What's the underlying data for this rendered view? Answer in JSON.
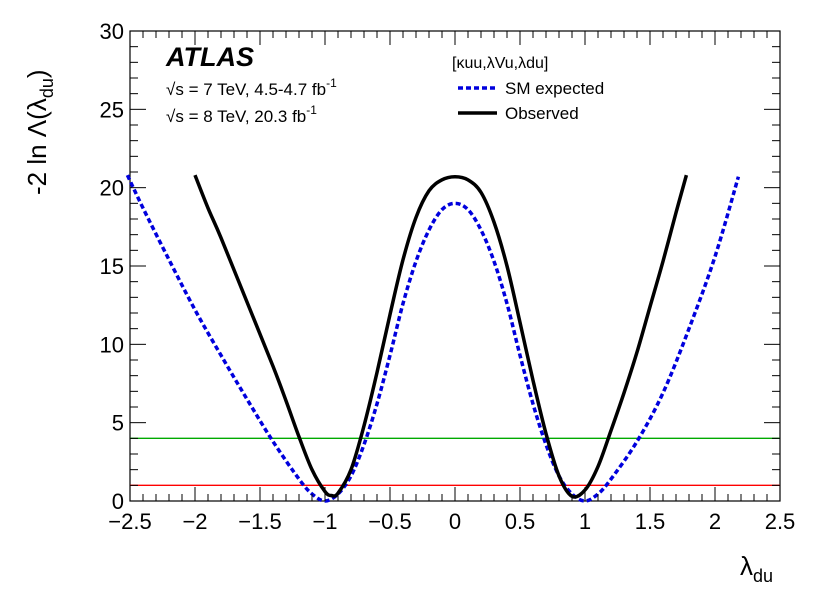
{
  "chart_data": {
    "type": "line",
    "xlabel": "λ",
    "xlabel_sub": "du",
    "ylabel": "-2 ln Λ(λ",
    "ylabel_sub": "du",
    "ylabel_close": ")",
    "xlim": [
      -2.5,
      2.5
    ],
    "ylim": [
      0,
      30
    ],
    "xticks": [
      -2.5,
      -2,
      -1.5,
      -1,
      -0.5,
      0,
      0.5,
      1,
      1.5,
      2,
      2.5
    ],
    "xtick_labels": [
      "−2.5",
      "−2",
      "−1.5",
      "−1",
      "−0.5",
      "0",
      "0.5",
      "1",
      "1.5",
      "2",
      "2.5"
    ],
    "yticks": [
      0,
      5,
      10,
      15,
      20,
      25,
      30
    ],
    "ytick_labels": [
      "0",
      "5",
      "10",
      "15",
      "20",
      "25",
      "30"
    ],
    "experiment": "ATLAS",
    "annotations": [
      {
        "sqrt": "√s",
        "text": " = 7 TeV, 4.5-4.7 fb",
        "sup": "-1"
      },
      {
        "sqrt": "√s",
        "text": " = 8 TeV, 20.3 fb",
        "sup": "-1"
      }
    ],
    "legend_header": "[κuu,λVu,λdu]",
    "legend_placement": "top-right",
    "series": [
      {
        "name": "SM expected",
        "style": "dashed",
        "color": "#0000dd",
        "x": [
          -2.52,
          -2.4,
          -2.2,
          -2.0,
          -1.8,
          -1.6,
          -1.4,
          -1.2,
          -1.1,
          -1.0,
          -0.9,
          -0.8,
          -0.7,
          -0.6,
          -0.5,
          -0.4,
          -0.3,
          -0.2,
          -0.1,
          0.0,
          0.1,
          0.2,
          0.3,
          0.4,
          0.5,
          0.6,
          0.7,
          0.8,
          0.9,
          1.0,
          1.1,
          1.2,
          1.4,
          1.6,
          1.8,
          2.0,
          2.18
        ],
        "y": [
          20.8,
          18.7,
          15.4,
          12.2,
          9.3,
          6.5,
          3.8,
          1.4,
          0.45,
          0.0,
          0.45,
          1.6,
          3.6,
          6.2,
          9.3,
          12.6,
          15.3,
          17.3,
          18.6,
          19.0,
          18.6,
          17.3,
          15.3,
          12.6,
          9.3,
          6.2,
          3.6,
          1.6,
          0.45,
          0.0,
          0.45,
          1.4,
          3.8,
          6.9,
          11.0,
          15.6,
          20.7
        ]
      },
      {
        "name": "Observed",
        "style": "solid",
        "color": "#000000",
        "x": [
          -2.0,
          -1.9,
          -1.8,
          -1.6,
          -1.4,
          -1.3,
          -1.2,
          -1.1,
          -1.0,
          -0.95,
          -0.9,
          -0.8,
          -0.7,
          -0.6,
          -0.5,
          -0.4,
          -0.3,
          -0.2,
          -0.1,
          0.0,
          0.1,
          0.2,
          0.3,
          0.4,
          0.5,
          0.6,
          0.7,
          0.8,
          0.9,
          1.0,
          1.1,
          1.2,
          1.3,
          1.4,
          1.5,
          1.6,
          1.7,
          1.78
        ],
        "y": [
          20.8,
          18.7,
          16.8,
          12.7,
          8.6,
          6.4,
          4.1,
          2.0,
          0.6,
          0.35,
          0.5,
          2.0,
          4.8,
          8.2,
          11.9,
          15.4,
          18.1,
          19.8,
          20.5,
          20.7,
          20.5,
          19.7,
          17.8,
          15.0,
          11.4,
          7.7,
          4.3,
          1.6,
          0.3,
          0.7,
          2.2,
          4.5,
          6.9,
          9.5,
          12.4,
          15.3,
          18.4,
          20.8
        ]
      }
    ],
    "reference_lines": [
      {
        "y": 1,
        "color": "#ff0000"
      },
      {
        "y": 4,
        "color": "#00aa00"
      }
    ]
  }
}
